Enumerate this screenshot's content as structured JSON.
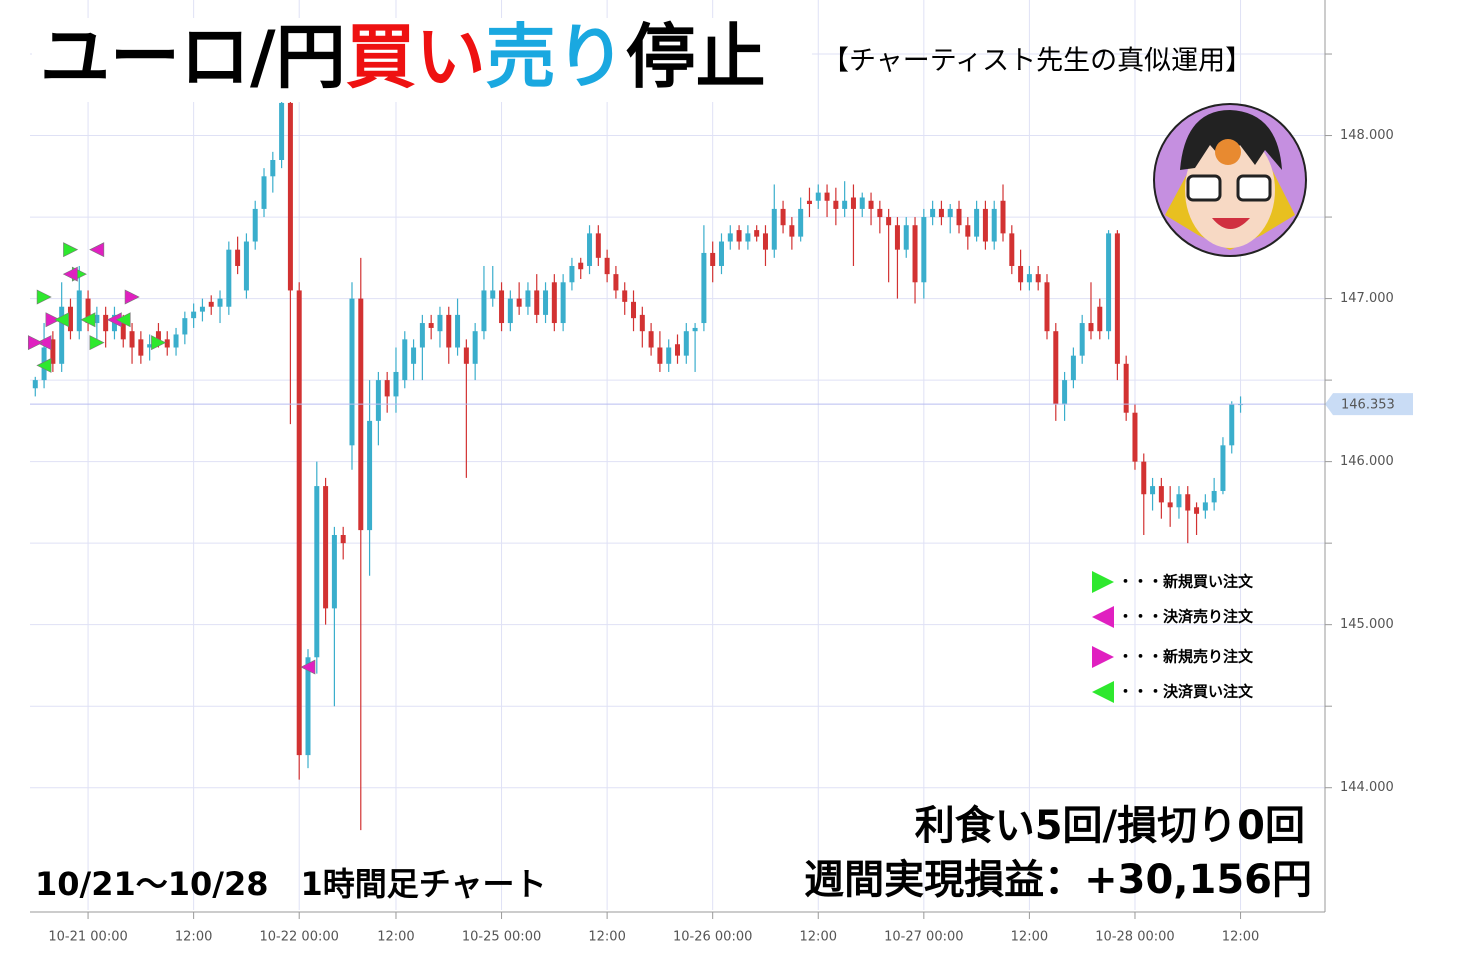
{
  "chart_data": {
    "type": "candlestick",
    "title_parts": [
      {
        "text": "ユーロ/円",
        "color": "#000000"
      },
      {
        "text": "買い",
        "color": "#ee1111"
      },
      {
        "text": "売り",
        "color": "#1aa8e0"
      },
      {
        "text": "停止",
        "color": "#000000"
      }
    ],
    "subtitle": "【チャーティスト先生の真似運用】",
    "summary": [
      "利食い5回/損切り0回",
      "週間実現損益：+30,156円"
    ],
    "period": "10/21～10/28　1時間足チャート",
    "up_color": "#3aaecc",
    "down_color": "#d23232",
    "xlim": [
      -0.6,
      146.6
    ],
    "ylim": [
      143.25,
      148.77
    ],
    "xticks": [
      {
        "value": 6,
        "label": "10-21 00:00"
      },
      {
        "value": 18,
        "label": "12:00"
      },
      {
        "value": 30,
        "label": "10-22 00:00"
      },
      {
        "value": 41,
        "label": "12:00"
      },
      {
        "value": 53,
        "label": "10-25 00:00"
      },
      {
        "value": 65,
        "label": "12:00"
      },
      {
        "value": 77,
        "label": "10-26 00:00"
      },
      {
        "value": 89,
        "label": "12:00"
      },
      {
        "value": 101,
        "label": "10-27 00:00"
      },
      {
        "value": 113,
        "label": "12:00"
      },
      {
        "value": 125,
        "label": "10-28 00:00"
      },
      {
        "value": 137,
        "label": "12:00"
      }
    ],
    "yticks": [
      {
        "value": 144,
        "label": "144.000"
      },
      {
        "value": 145,
        "label": "145.000"
      },
      {
        "value": 146,
        "label": "146.000"
      },
      {
        "value": 147,
        "label": "147.000"
      },
      {
        "value": 148,
        "label": "148.000"
      }
    ],
    "minor_yticks": [
      144.5,
      145.5,
      146.5,
      147.5,
      148.5
    ],
    "grid": true,
    "current_price": 146.353,
    "ohlc": [
      [
        146.45,
        146.52,
        146.4,
        146.5
      ],
      [
        146.5,
        146.85,
        146.45,
        146.7
      ],
      [
        146.75,
        146.8,
        146.55,
        146.6
      ],
      [
        146.6,
        147.1,
        146.55,
        146.95
      ],
      [
        146.95,
        147.0,
        146.75,
        146.8
      ],
      [
        146.8,
        147.2,
        146.75,
        147.05
      ],
      [
        147.0,
        147.05,
        146.8,
        146.85
      ],
      [
        146.85,
        146.95,
        146.75,
        146.9
      ],
      [
        146.9,
        146.95,
        146.7,
        146.8
      ],
      [
        146.8,
        146.95,
        146.75,
        146.9
      ],
      [
        146.85,
        146.9,
        146.7,
        146.75
      ],
      [
        146.8,
        146.85,
        146.6,
        146.7
      ],
      [
        146.75,
        146.8,
        146.6,
        146.65
      ],
      [
        146.7,
        146.78,
        146.62,
        146.72
      ],
      [
        146.8,
        146.85,
        146.7,
        146.72
      ],
      [
        146.75,
        146.8,
        146.65,
        146.7
      ],
      [
        146.7,
        146.82,
        146.65,
        146.78
      ],
      [
        146.78,
        146.92,
        146.72,
        146.88
      ],
      [
        146.88,
        146.97,
        146.82,
        146.92
      ],
      [
        146.92,
        147.0,
        146.86,
        146.95
      ],
      [
        146.98,
        147.02,
        146.9,
        146.95
      ],
      [
        146.95,
        147.05,
        146.85,
        147.0
      ],
      [
        146.95,
        147.35,
        146.9,
        147.3
      ],
      [
        147.3,
        147.38,
        147.15,
        147.2
      ],
      [
        147.05,
        147.4,
        147.0,
        147.35
      ],
      [
        147.35,
        147.6,
        147.3,
        147.55
      ],
      [
        147.55,
        147.8,
        147.5,
        147.75
      ],
      [
        147.75,
        147.9,
        147.65,
        147.85
      ],
      [
        147.85,
        148.3,
        147.8,
        148.2
      ],
      [
        148.2,
        148.3,
        146.23,
        147.05
      ],
      [
        147.05,
        147.1,
        144.05,
        144.2
      ],
      [
        144.2,
        144.85,
        144.12,
        144.8
      ],
      [
        144.8,
        146.0,
        144.7,
        145.85
      ],
      [
        145.85,
        145.9,
        145.0,
        145.1
      ],
      [
        145.1,
        145.6,
        144.5,
        145.55
      ],
      [
        145.55,
        145.6,
        145.4,
        145.5
      ],
      [
        146.1,
        147.1,
        145.95,
        147.0
      ],
      [
        147.0,
        147.25,
        143.74,
        145.58
      ],
      [
        145.58,
        146.5,
        145.3,
        146.25
      ],
      [
        146.25,
        146.55,
        146.1,
        146.5
      ],
      [
        146.5,
        146.55,
        146.3,
        146.4
      ],
      [
        146.4,
        146.7,
        146.3,
        146.55
      ],
      [
        146.5,
        146.8,
        146.45,
        146.75
      ],
      [
        146.6,
        146.75,
        146.5,
        146.7
      ],
      [
        146.7,
        146.9,
        146.5,
        146.85
      ],
      [
        146.85,
        146.9,
        146.75,
        146.82
      ],
      [
        146.8,
        146.95,
        146.7,
        146.9
      ],
      [
        146.9,
        146.95,
        146.6,
        146.7
      ],
      [
        146.7,
        147.0,
        146.65,
        146.9
      ],
      [
        146.7,
        146.75,
        145.9,
        146.6
      ],
      [
        146.6,
        146.85,
        146.5,
        146.8
      ],
      [
        146.8,
        147.2,
        146.75,
        147.05
      ],
      [
        147.0,
        147.2,
        146.95,
        147.05
      ],
      [
        147.05,
        147.1,
        146.8,
        146.85
      ],
      [
        146.85,
        147.05,
        146.8,
        147.0
      ],
      [
        147.0,
        147.1,
        146.9,
        146.95
      ],
      [
        146.95,
        147.1,
        146.9,
        147.05
      ],
      [
        147.05,
        147.15,
        146.85,
        146.9
      ],
      [
        146.9,
        147.1,
        146.85,
        147.05
      ],
      [
        147.1,
        147.15,
        146.8,
        146.85
      ],
      [
        146.85,
        147.15,
        146.8,
        147.1
      ],
      [
        147.1,
        147.25,
        147.05,
        147.2
      ],
      [
        147.22,
        147.25,
        147.12,
        147.18
      ],
      [
        147.2,
        147.45,
        147.15,
        147.4
      ],
      [
        147.4,
        147.45,
        147.2,
        147.25
      ],
      [
        147.25,
        147.3,
        147.1,
        147.15
      ],
      [
        147.15,
        147.2,
        147.0,
        147.05
      ],
      [
        147.05,
        147.1,
        146.9,
        146.98
      ],
      [
        146.98,
        147.05,
        146.8,
        146.88
      ],
      [
        146.9,
        146.95,
        146.7,
        146.8
      ],
      [
        146.8,
        146.85,
        146.65,
        146.7
      ],
      [
        146.7,
        146.8,
        146.55,
        146.6
      ],
      [
        146.6,
        146.75,
        146.55,
        146.7
      ],
      [
        146.72,
        146.78,
        146.6,
        146.65
      ],
      [
        146.65,
        146.85,
        146.6,
        146.8
      ],
      [
        146.8,
        146.85,
        146.55,
        146.82
      ],
      [
        146.85,
        147.45,
        146.8,
        147.28
      ],
      [
        147.28,
        147.35,
        147.1,
        147.2
      ],
      [
        147.2,
        147.4,
        147.15,
        147.35
      ],
      [
        147.35,
        147.45,
        147.3,
        147.4
      ],
      [
        147.42,
        147.45,
        147.3,
        147.35
      ],
      [
        147.35,
        147.45,
        147.3,
        147.4
      ],
      [
        147.42,
        147.45,
        147.35,
        147.38
      ],
      [
        147.4,
        147.45,
        147.2,
        147.3
      ],
      [
        147.3,
        147.7,
        147.25,
        147.55
      ],
      [
        147.55,
        147.6,
        147.4,
        147.45
      ],
      [
        147.45,
        147.5,
        147.3,
        147.38
      ],
      [
        147.38,
        147.62,
        147.35,
        147.55
      ],
      [
        147.6,
        147.68,
        147.5,
        147.58
      ],
      [
        147.6,
        147.7,
        147.55,
        147.65
      ],
      [
        147.65,
        147.7,
        147.5,
        147.6
      ],
      [
        147.6,
        147.68,
        147.45,
        147.55
      ],
      [
        147.55,
        147.72,
        147.5,
        147.6
      ],
      [
        147.62,
        147.7,
        147.2,
        147.55
      ],
      [
        147.55,
        147.65,
        147.5,
        147.62
      ],
      [
        147.6,
        147.65,
        147.45,
        147.55
      ],
      [
        147.55,
        147.6,
        147.4,
        147.5
      ],
      [
        147.5,
        147.55,
        147.1,
        147.45
      ],
      [
        147.45,
        147.5,
        147.0,
        147.3
      ],
      [
        147.3,
        147.5,
        147.25,
        147.45
      ],
      [
        147.45,
        147.5,
        146.97,
        147.1
      ],
      [
        147.1,
        147.55,
        147.0,
        147.5
      ],
      [
        147.5,
        147.6,
        147.45,
        147.55
      ],
      [
        147.55,
        147.6,
        147.45,
        147.5
      ],
      [
        147.5,
        147.58,
        147.4,
        147.55
      ],
      [
        147.55,
        147.6,
        147.4,
        147.45
      ],
      [
        147.45,
        147.5,
        147.3,
        147.38
      ],
      [
        147.38,
        147.6,
        147.35,
        147.55
      ],
      [
        147.55,
        147.6,
        147.3,
        147.35
      ],
      [
        147.35,
        147.6,
        147.3,
        147.55
      ],
      [
        147.6,
        147.7,
        147.35,
        147.4
      ],
      [
        147.4,
        147.45,
        147.15,
        147.2
      ],
      [
        147.2,
        147.3,
        147.05,
        147.1
      ],
      [
        147.1,
        147.2,
        147.05,
        147.15
      ],
      [
        147.15,
        147.2,
        147.05,
        147.1
      ],
      [
        147.1,
        147.15,
        146.75,
        146.8
      ],
      [
        146.8,
        146.85,
        146.25,
        146.35
      ],
      [
        146.35,
        146.55,
        146.25,
        146.5
      ],
      [
        146.5,
        146.7,
        146.45,
        146.65
      ],
      [
        146.65,
        146.9,
        146.6,
        146.85
      ],
      [
        146.85,
        147.1,
        146.75,
        146.8
      ],
      [
        146.95,
        147.0,
        146.75,
        146.8
      ],
      [
        146.8,
        147.42,
        146.75,
        147.4
      ],
      [
        147.4,
        147.42,
        146.5,
        146.6
      ],
      [
        146.6,
        146.65,
        146.25,
        146.3
      ],
      [
        146.3,
        146.35,
        145.95,
        146.0
      ],
      [
        146.0,
        146.05,
        145.55,
        145.8
      ],
      [
        145.8,
        145.9,
        145.7,
        145.85
      ],
      [
        145.85,
        145.9,
        145.65,
        145.75
      ],
      [
        145.75,
        145.85,
        145.6,
        145.72
      ],
      [
        145.72,
        145.85,
        145.65,
        145.8
      ],
      [
        145.8,
        145.85,
        145.5,
        145.7
      ],
      [
        145.72,
        145.75,
        145.55,
        145.68
      ],
      [
        145.7,
        145.8,
        145.65,
        145.75
      ],
      [
        145.75,
        145.9,
        145.7,
        145.82
      ],
      [
        145.82,
        146.15,
        145.8,
        146.1
      ],
      [
        146.1,
        146.37,
        146.05,
        146.35
      ],
      [
        146.35,
        146.4,
        146.3,
        146.353
      ]
    ],
    "series": [
      {
        "name": "・・・新規買い注文",
        "color": "#2ee82e",
        "direction": "right",
        "x": [
          1,
          4,
          5,
          7,
          14
        ],
        "values": [
          147.01,
          147.3,
          147.15,
          146.73,
          146.73
        ]
      },
      {
        "name": "・・・決済売り注文",
        "color": "#e020c0",
        "direction": "left",
        "x": [
          1,
          4,
          7,
          9,
          31
        ],
        "values": [
          146.73,
          147.15,
          147.3,
          146.87,
          144.74
        ]
      },
      {
        "name": "・・・新規売り注文",
        "color": "#e020c0",
        "direction": "right",
        "x": [
          0,
          2,
          11
        ],
        "values": [
          146.73,
          146.87,
          147.01
        ]
      },
      {
        "name": "・・・決済買い注文",
        "color": "#2ee82e",
        "direction": "left",
        "x": [
          1,
          3,
          6,
          10
        ],
        "values": [
          146.59,
          146.87,
          146.87,
          146.87
        ]
      }
    ]
  }
}
